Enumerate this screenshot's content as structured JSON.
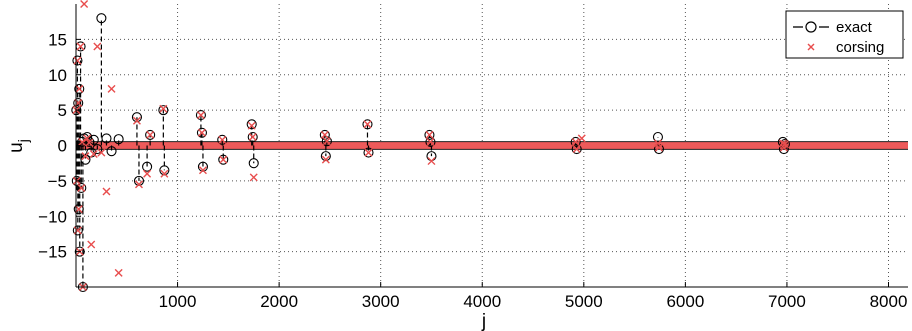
{
  "chart_data": {
    "type": "scatter",
    "title": "",
    "xlabel": "j",
    "ylabel": "u",
    "ylabel_subscript": "j",
    "xlim": [
      0,
      8192
    ],
    "ylim": [
      -20,
      20
    ],
    "x_ticks": [
      1000,
      2000,
      3000,
      4000,
      5000,
      6000,
      7000,
      8000
    ],
    "x_tick_labels": [
      "1000",
      "2000",
      "3000",
      "4000",
      "5000",
      "6000",
      "7000",
      "8000"
    ],
    "y_ticks": [
      -15,
      -10,
      -5,
      0,
      5,
      10,
      15
    ],
    "y_tick_labels": [
      "−15",
      "−10",
      "−5",
      "0",
      "5",
      "10",
      "15"
    ],
    "grid": true,
    "legend_position": "top-right",
    "legend": [
      {
        "label": "exact",
        "marker": "circle",
        "line": "dashed",
        "color": "#000000"
      },
      {
        "label": "corsing",
        "marker": "x",
        "line": "none",
        "color": "#e84d4d"
      }
    ],
    "series": [
      {
        "name": "exact",
        "color": "#000000",
        "x": [
          3,
          8,
          14,
          18,
          22,
          27,
          32,
          37,
          45,
          52,
          60,
          68,
          80,
          93,
          110,
          130,
          150,
          175,
          210,
          250,
          300,
          350,
          420,
          600,
          620,
          700,
          730,
          860,
          870,
          1230,
          1240,
          1250,
          1440,
          1450,
          1730,
          1740,
          1750,
          2450,
          2460,
          2470,
          2870,
          2880,
          3480,
          3490,
          3500,
          4920,
          4930,
          5730,
          5740,
          6960,
          6970,
          6980
        ],
        "y": [
          5,
          -5,
          12,
          -12,
          6,
          -9,
          8,
          -15,
          14,
          -6,
          0.5,
          -20,
          1,
          -2,
          1.2,
          0.5,
          -1,
          0.8,
          -0.5,
          18,
          1,
          -0.8,
          0.9,
          4,
          -5,
          -3,
          1.5,
          5,
          -3.5,
          4.3,
          1.8,
          -3,
          0.8,
          -2,
          3,
          1.2,
          -2.5,
          1.5,
          -1.5,
          0.6,
          3,
          -1,
          1.5,
          0.5,
          -1.5,
          0.5,
          -0.5,
          1.2,
          -0.5,
          0.5,
          -0.5,
          0.2
        ]
      },
      {
        "name": "corsing",
        "color": "#e84d4d",
        "x": [
          3,
          8,
          14,
          18,
          22,
          27,
          32,
          37,
          45,
          52,
          60,
          68,
          80,
          93,
          110,
          130,
          150,
          175,
          210,
          250,
          300,
          350,
          420,
          600,
          620,
          700,
          730,
          860,
          870,
          1230,
          1240,
          1250,
          1440,
          1450,
          1730,
          1740,
          1750,
          2450,
          2460,
          2470,
          2870,
          2880,
          3480,
          3490,
          3500,
          4920,
          4930,
          4980,
          5730,
          5740,
          6960,
          6970,
          6980
        ],
        "y": [
          5,
          -5,
          12,
          -12,
          6,
          -9,
          8,
          -15,
          14,
          -6,
          0.5,
          -20,
          20,
          -1.5,
          1,
          0.4,
          -14,
          -1.2,
          14,
          -1,
          -6.5,
          8,
          -18,
          3.5,
          -5.5,
          -4,
          1.5,
          5.2,
          -4,
          4.3,
          1.8,
          -3.5,
          0.8,
          -2,
          2.8,
          1.2,
          -4.5,
          1.5,
          -2,
          0.6,
          3,
          -1,
          1.5,
          0.5,
          -2.2,
          0.5,
          -0.5,
          1,
          0.3,
          -0.3,
          0.3,
          -0.3,
          0.2
        ]
      }
    ]
  }
}
